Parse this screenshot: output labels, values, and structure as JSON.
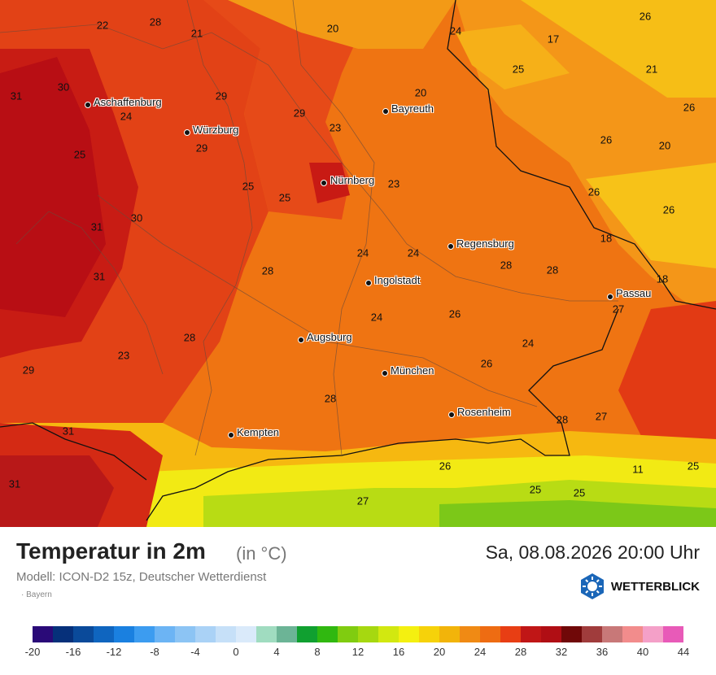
{
  "map": {
    "cities": [
      {
        "name": "Aschaffenburg"
      },
      {
        "name": "Würzburg"
      },
      {
        "name": "Bayreuth"
      },
      {
        "name": "Nürnberg"
      },
      {
        "name": "Regensburg"
      },
      {
        "name": "Ingolstadt"
      },
      {
        "name": "Passau"
      },
      {
        "name": "Augsburg"
      },
      {
        "name": "München"
      },
      {
        "name": "Rosenheim"
      },
      {
        "name": "Kempten"
      }
    ],
    "temperatures": [
      "22",
      "28",
      "21",
      "20",
      "24",
      "26",
      "17",
      "25",
      "21",
      "31",
      "30",
      "29",
      "20",
      "26",
      "24",
      "29",
      "23",
      "29",
      "25",
      "26",
      "20",
      "25",
      "25",
      "23",
      "26",
      "31",
      "30",
      "26",
      "24",
      "24",
      "28",
      "28",
      "18",
      "31",
      "28",
      "18",
      "24",
      "26",
      "27",
      "28",
      "23",
      "24",
      "29",
      "26",
      "28",
      "28",
      "27",
      "31",
      "26",
      "11",
      "25",
      "31",
      "25",
      "25",
      "27"
    ],
    "colors": {
      "hot": "#c81a14",
      "warm": "#e8401a",
      "mild": "#f07010",
      "cool": "#f8d020",
      "green": "#90d020"
    }
  },
  "footer": {
    "title": "Temperatur in 2m",
    "unit": "(in °C)",
    "datetime": "Sa, 08.08.2026 20:00 Uhr",
    "model": "Modell: ICON-D2 15z, Deutscher Wetterdienst",
    "region": "· Bayern",
    "logo": "WETTERBLICK"
  },
  "scale": {
    "colors": [
      "#2a0a78",
      "#06307a",
      "#0a4a9a",
      "#0f65bf",
      "#1a80e0",
      "#3c9cf0",
      "#6cb4f4",
      "#8cc4f4",
      "#aad2f6",
      "#c6e0f8",
      "#daeafa",
      "#a0dcc0",
      "#6cb496",
      "#10a030",
      "#30b810",
      "#80cc10",
      "#a6d810",
      "#d2e810",
      "#f4f010",
      "#f6d20a",
      "#f2b40a",
      "#f08a14",
      "#ee6c12",
      "#e83e14",
      "#c01616",
      "#b00e14",
      "#700808",
      "#a03c3c",
      "#c87878",
      "#f28c8c",
      "#f4a0c8",
      "#e85ab8"
    ],
    "ticks": [
      "-20",
      "-16",
      "-12",
      "-8",
      "-4",
      "0",
      "4",
      "8",
      "12",
      "16",
      "20",
      "24",
      "28",
      "32",
      "36",
      "40",
      "44"
    ]
  }
}
